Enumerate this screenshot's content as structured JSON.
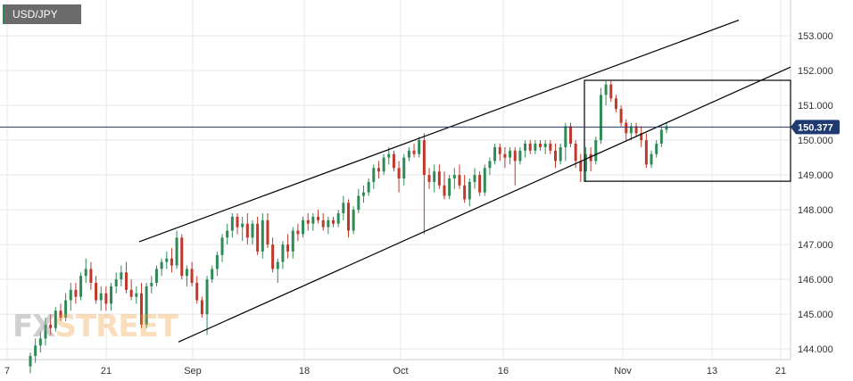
{
  "symbol": "USD/JPY",
  "watermark": {
    "part1": "FX",
    "part2": "STREET"
  },
  "current_price_label": "150.377",
  "colors": {
    "bull": "#2e8b57",
    "bear": "#c0392b",
    "price_line": "#1f3a6e",
    "grid": "#e8e8e8"
  },
  "chart_data": {
    "type": "candlestick",
    "title": "",
    "xlabel": "",
    "ylabel": "",
    "ylim": [
      143.4,
      153.4
    ],
    "x_tick_labels": [
      "7",
      "21",
      "Sep",
      "18",
      "Oct",
      "16",
      "Nov",
      "13",
      "21"
    ],
    "y_tick_labels": [
      "153.000",
      "152.000",
      "151.000",
      "150.000",
      "149.000",
      "148.000",
      "147.000",
      "146.000",
      "145.000",
      "144.000"
    ],
    "y_ticks": [
      153,
      152,
      151,
      150,
      149,
      148,
      147,
      146,
      145,
      144
    ],
    "current_price": 150.377,
    "candles": [
      [
        143.5,
        143.9,
        143.3,
        143.8
      ],
      [
        143.8,
        144.3,
        143.6,
        144.1
      ],
      [
        144.1,
        144.5,
        143.9,
        144.3
      ],
      [
        144.3,
        144.9,
        144.1,
        144.7
      ],
      [
        144.7,
        145.0,
        144.4,
        144.6
      ],
      [
        144.6,
        145.2,
        144.5,
        145.1
      ],
      [
        145.1,
        145.3,
        144.8,
        144.9
      ],
      [
        144.9,
        145.6,
        144.8,
        145.4
      ],
      [
        145.4,
        145.9,
        145.1,
        145.7
      ],
      [
        145.7,
        145.9,
        145.3,
        145.5
      ],
      [
        145.5,
        146.2,
        145.4,
        146.1
      ],
      [
        146.1,
        146.6,
        145.9,
        146.3
      ],
      [
        146.3,
        146.5,
        145.7,
        145.9
      ],
      [
        145.9,
        146.1,
        145.3,
        145.4
      ],
      [
        145.4,
        145.8,
        145.1,
        145.6
      ],
      [
        145.6,
        145.8,
        145.1,
        145.3
      ],
      [
        145.3,
        145.9,
        145.1,
        145.8
      ],
      [
        145.8,
        146.2,
        145.6,
        146.0
      ],
      [
        146.0,
        146.4,
        145.8,
        146.2
      ],
      [
        146.2,
        146.5,
        145.6,
        145.7
      ],
      [
        145.7,
        146.0,
        145.4,
        145.5
      ],
      [
        145.5,
        145.8,
        145.3,
        145.6
      ],
      [
        145.6,
        145.9,
        144.6,
        144.7
      ],
      [
        144.7,
        145.9,
        144.6,
        145.8
      ],
      [
        145.8,
        146.1,
        145.6,
        145.9
      ],
      [
        145.9,
        146.4,
        145.8,
        146.3
      ],
      [
        146.3,
        146.6,
        146.1,
        146.5
      ],
      [
        146.5,
        146.8,
        146.3,
        146.6
      ],
      [
        146.6,
        146.9,
        146.2,
        146.4
      ],
      [
        146.4,
        147.4,
        146.3,
        147.2
      ],
      [
        147.2,
        147.3,
        146.0,
        146.1
      ],
      [
        146.1,
        146.4,
        145.8,
        146.3
      ],
      [
        146.3,
        146.5,
        145.8,
        145.9
      ],
      [
        145.9,
        146.1,
        145.3,
        145.4
      ],
      [
        145.4,
        145.5,
        144.9,
        145.0
      ],
      [
        145.0,
        146.1,
        144.4,
        146.0
      ],
      [
        146.0,
        146.4,
        145.9,
        146.3
      ],
      [
        146.3,
        146.8,
        146.1,
        146.7
      ],
      [
        146.7,
        147.3,
        146.5,
        147.2
      ],
      [
        147.2,
        147.6,
        147.0,
        147.4
      ],
      [
        147.4,
        147.9,
        147.2,
        147.8
      ],
      [
        147.8,
        147.9,
        147.3,
        147.5
      ],
      [
        147.5,
        147.8,
        147.1,
        147.6
      ],
      [
        147.6,
        147.9,
        147.0,
        147.2
      ],
      [
        147.2,
        147.7,
        147.0,
        147.6
      ],
      [
        147.6,
        147.8,
        146.7,
        146.8
      ],
      [
        146.8,
        147.9,
        146.6,
        147.7
      ],
      [
        147.7,
        147.9,
        146.9,
        147.0
      ],
      [
        147.0,
        147.2,
        146.2,
        146.3
      ],
      [
        146.3,
        146.6,
        145.9,
        146.5
      ],
      [
        146.5,
        147.1,
        146.3,
        147.0
      ],
      [
        147.0,
        147.3,
        146.6,
        146.8
      ],
      [
        146.8,
        147.5,
        146.6,
        147.4
      ],
      [
        147.4,
        147.6,
        147.1,
        147.3
      ],
      [
        147.3,
        147.8,
        147.2,
        147.7
      ],
      [
        147.7,
        147.9,
        147.4,
        147.6
      ],
      [
        147.6,
        147.9,
        147.4,
        147.8
      ],
      [
        147.8,
        148.0,
        147.6,
        147.7
      ],
      [
        147.7,
        147.9,
        147.4,
        147.5
      ],
      [
        147.5,
        147.8,
        147.3,
        147.7
      ],
      [
        147.7,
        147.8,
        147.5,
        147.6
      ],
      [
        147.6,
        148.0,
        147.5,
        147.9
      ],
      [
        147.9,
        148.4,
        147.7,
        148.2
      ],
      [
        148.2,
        148.3,
        147.2,
        147.4
      ],
      [
        147.4,
        148.1,
        147.3,
        148.0
      ],
      [
        148.0,
        148.6,
        147.9,
        148.4
      ],
      [
        148.4,
        148.7,
        148.2,
        148.5
      ],
      [
        148.5,
        148.9,
        148.4,
        148.8
      ],
      [
        148.8,
        149.3,
        148.6,
        149.2
      ],
      [
        149.2,
        149.4,
        148.9,
        149.1
      ],
      [
        149.1,
        149.6,
        149.0,
        149.5
      ],
      [
        149.5,
        149.8,
        149.3,
        149.6
      ],
      [
        149.6,
        149.7,
        149.1,
        149.2
      ],
      [
        149.2,
        149.4,
        148.5,
        148.9
      ],
      [
        148.9,
        149.6,
        148.7,
        149.5
      ],
      [
        149.5,
        149.8,
        149.4,
        149.7
      ],
      [
        149.7,
        149.9,
        149.5,
        149.6
      ],
      [
        149.6,
        150.1,
        149.5,
        150.0
      ],
      [
        150.0,
        150.2,
        147.3,
        149.0
      ],
      [
        149.0,
        149.2,
        148.6,
        148.8
      ],
      [
        148.8,
        149.3,
        148.5,
        149.1
      ],
      [
        149.1,
        149.3,
        148.6,
        148.7
      ],
      [
        148.7,
        149.1,
        148.3,
        148.4
      ],
      [
        148.4,
        149.0,
        148.3,
        148.9
      ],
      [
        148.9,
        149.2,
        148.6,
        149.0
      ],
      [
        149.0,
        149.3,
        148.6,
        148.7
      ],
      [
        148.7,
        149.0,
        148.2,
        148.3
      ],
      [
        148.3,
        148.9,
        148.1,
        148.8
      ],
      [
        148.8,
        149.2,
        148.6,
        149.0
      ],
      [
        149.0,
        149.1,
        148.4,
        148.5
      ],
      [
        148.5,
        149.3,
        148.4,
        149.2
      ],
      [
        149.2,
        149.5,
        149.0,
        149.4
      ],
      [
        149.4,
        149.9,
        149.3,
        149.8
      ],
      [
        149.8,
        149.9,
        149.4,
        149.6
      ],
      [
        149.6,
        149.8,
        149.2,
        149.5
      ],
      [
        149.5,
        149.8,
        149.3,
        149.7
      ],
      [
        149.7,
        149.8,
        148.7,
        149.4
      ],
      [
        149.4,
        149.8,
        149.3,
        149.7
      ],
      [
        149.7,
        150.0,
        149.5,
        149.9
      ],
      [
        149.9,
        150.0,
        149.6,
        149.7
      ],
      [
        149.7,
        150.0,
        149.6,
        149.9
      ],
      [
        149.9,
        150.0,
        149.7,
        149.8
      ],
      [
        149.8,
        150.0,
        149.6,
        149.9
      ],
      [
        149.9,
        150.0,
        149.6,
        149.7
      ],
      [
        149.7,
        149.9,
        149.2,
        149.4
      ],
      [
        149.4,
        149.9,
        149.3,
        149.8
      ],
      [
        149.8,
        150.5,
        149.4,
        150.4
      ],
      [
        150.4,
        150.5,
        149.8,
        149.9
      ],
      [
        149.9,
        150.0,
        149.2,
        149.4
      ],
      [
        149.4,
        149.6,
        148.8,
        149.1
      ],
      [
        149.1,
        149.8,
        148.8,
        149.6
      ],
      [
        149.6,
        149.8,
        149.1,
        149.4
      ],
      [
        149.4,
        150.1,
        149.3,
        150.0
      ],
      [
        150.0,
        151.5,
        149.9,
        151.3
      ],
      [
        151.3,
        151.7,
        151.0,
        151.6
      ],
      [
        151.6,
        151.7,
        151.1,
        151.2
      ],
      [
        151.2,
        151.3,
        150.8,
        150.9
      ],
      [
        150.9,
        151.0,
        150.4,
        150.5
      ],
      [
        150.5,
        150.6,
        150.0,
        150.2
      ],
      [
        150.2,
        150.5,
        150.0,
        150.4
      ],
      [
        150.4,
        150.5,
        150.1,
        150.2
      ],
      [
        150.2,
        150.4,
        149.8,
        150.0
      ],
      [
        150.0,
        150.2,
        149.2,
        149.3
      ],
      [
        149.3,
        149.7,
        149.2,
        149.6
      ],
      [
        149.6,
        150.0,
        149.5,
        149.9
      ],
      [
        149.9,
        150.4,
        149.8,
        150.3
      ],
      [
        150.3,
        150.5,
        150.2,
        150.4
      ]
    ]
  }
}
